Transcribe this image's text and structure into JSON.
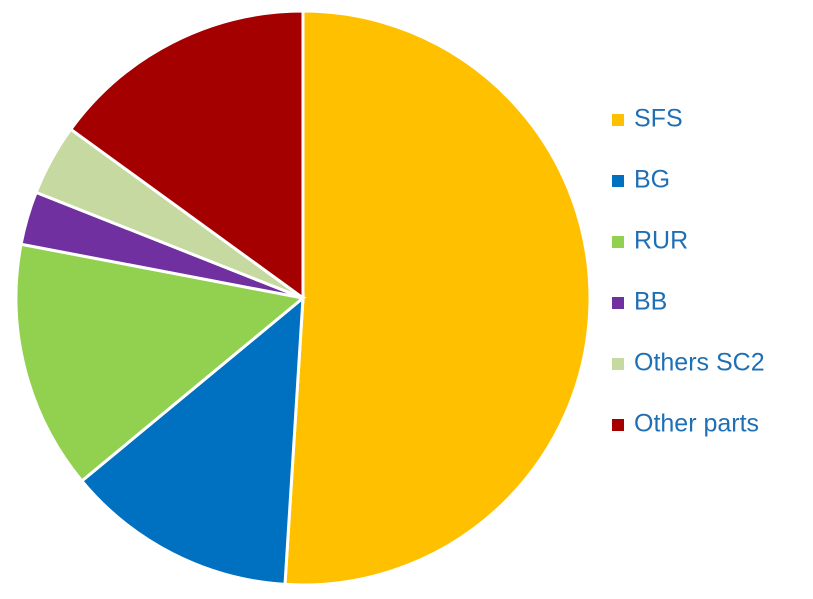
{
  "chart_data": {
    "type": "pie",
    "categories": [
      "SFS",
      "BG",
      "RUR",
      "BB",
      "Others SC2",
      "Other parts"
    ],
    "values": [
      51,
      13,
      14,
      3,
      4,
      15
    ],
    "colors": [
      "#ffc000",
      "#0070c0",
      "#92d050",
      "#7030a0",
      "#c5d9a0",
      "#a50000"
    ],
    "legend": "right"
  }
}
